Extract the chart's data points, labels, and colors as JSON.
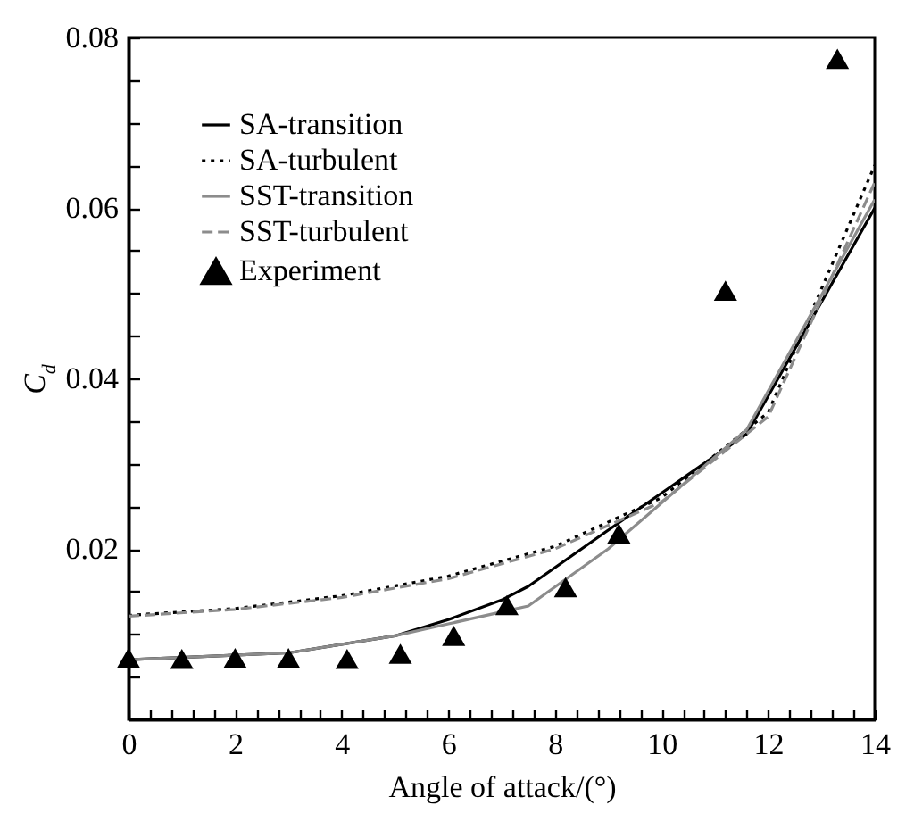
{
  "chart_data": {
    "type": "line",
    "xlabel": "Angle of attack/(°)",
    "ylabel": "C$_{d}$",
    "xlim": [
      0,
      14
    ],
    "ylim": [
      0,
      0.08
    ],
    "xticks": [
      0,
      {
        "value": 0.4,
        "label": null
      },
      {
        "value": 0.8,
        "label": null
      },
      {
        "value": 1.2,
        "label": null
      },
      {
        "value": 1.6,
        "label": null
      },
      2,
      {
        "value": 2.4,
        "label": null
      },
      {
        "value": 2.8,
        "label": null
      },
      {
        "value": 3.2,
        "label": null
      },
      {
        "value": 3.6,
        "label": null
      },
      4,
      {
        "value": 4.4,
        "label": null
      },
      {
        "value": 4.8,
        "label": null
      },
      {
        "value": 5.2,
        "label": null
      },
      {
        "value": 5.6,
        "label": null
      },
      6,
      {
        "value": 6.4,
        "label": null
      },
      {
        "value": 6.8,
        "label": null
      },
      {
        "value": 7.2,
        "label": null
      },
      {
        "value": 7.6,
        "label": null
      },
      8,
      {
        "value": 8.4,
        "label": null
      },
      {
        "value": 8.8,
        "label": null
      },
      {
        "value": 9.2,
        "label": null
      },
      {
        "value": 9.6,
        "label": null
      },
      10,
      {
        "value": 10.4,
        "label": null
      },
      {
        "value": 10.8,
        "label": null
      },
      {
        "value": 11.2,
        "label": null
      },
      {
        "value": 11.6,
        "label": null
      },
      12,
      {
        "value": 12.4,
        "label": null
      },
      {
        "value": 12.8,
        "label": null
      },
      {
        "value": 13.2,
        "label": null
      },
      {
        "value": 13.6,
        "label": null
      },
      14
    ],
    "yticks": [
      {
        "value": 0.005,
        "label": null
      },
      {
        "value": 0.01,
        "label": null
      },
      {
        "value": 0.015,
        "label": null
      },
      0.02,
      {
        "value": 0.025,
        "label": null
      },
      {
        "value": 0.03,
        "label": null
      },
      {
        "value": 0.035,
        "label": null
      },
      0.04,
      {
        "value": 0.045,
        "label": null
      },
      {
        "value": 0.05,
        "label": null
      },
      {
        "value": 0.055,
        "label": null
      },
      0.06,
      {
        "value": 0.065,
        "label": null
      },
      {
        "value": 0.07,
        "label": null
      },
      {
        "value": 0.075,
        "label": null
      },
      0.08
    ],
    "grid": false,
    "legend": "top left",
    "series": [
      {
        "name": "SA-transition",
        "type": "line",
        "color": "#000000",
        "line_style": "solid",
        "x": [
          0,
          3,
          5,
          6,
          7,
          7.5,
          9,
          11.6,
          14
        ],
        "values": [
          0.007,
          0.0078,
          0.0098,
          0.0117,
          0.014,
          0.0156,
          0.0222,
          0.0335,
          0.06
        ]
      },
      {
        "name": "SA-turbulent",
        "type": "line",
        "color": "#000000",
        "line_style": "dotted",
        "x": [
          0,
          2,
          4,
          6,
          8,
          10,
          12,
          14
        ],
        "values": [
          0.0122,
          0.013,
          0.0145,
          0.0168,
          0.0203,
          0.026,
          0.036,
          0.065
        ]
      },
      {
        "name": "SST-transition",
        "type": "line",
        "color": "#8c8c8c",
        "line_style": "solid",
        "x": [
          0,
          3,
          5,
          6,
          7,
          7.5,
          9,
          11.6,
          14
        ],
        "values": [
          0.007,
          0.0078,
          0.0098,
          0.0112,
          0.0126,
          0.0133,
          0.02,
          0.034,
          0.061
        ]
      },
      {
        "name": "SST-turbulent",
        "type": "line",
        "color": "#8c8c8c",
        "line_style": "dashed",
        "x": [
          0,
          2,
          4,
          6,
          8,
          10,
          12,
          14
        ],
        "values": [
          0.0121,
          0.0129,
          0.0143,
          0.0165,
          0.02,
          0.0255,
          0.0355,
          0.063
        ]
      },
      {
        "name": "Experiment",
        "type": "scatter",
        "color": "#000000",
        "marker": "triangle",
        "x": [
          0,
          1,
          2,
          3,
          4.1,
          5.1,
          6.1,
          7.1,
          8.2,
          9.2,
          11.2,
          13.3
        ],
        "values": [
          0.0072,
          0.0071,
          0.0072,
          0.0072,
          0.0071,
          0.0077,
          0.0098,
          0.0134,
          0.0155,
          0.0218,
          0.0503,
          0.0775
        ]
      }
    ]
  }
}
